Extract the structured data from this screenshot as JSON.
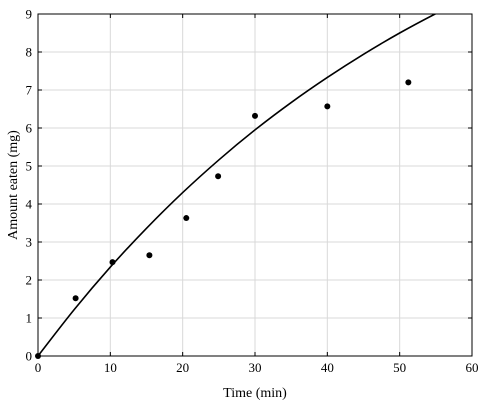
{
  "chart_data": {
    "type": "scatter",
    "xlabel": "Time (min)",
    "ylabel": "Amount eaten (mg)",
    "xlim": [
      0,
      60
    ],
    "ylim": [
      0,
      9
    ],
    "xticks": [
      0,
      10,
      20,
      30,
      40,
      50,
      60
    ],
    "yticks": [
      0,
      1,
      2,
      3,
      4,
      5,
      6,
      7,
      8,
      9
    ],
    "grid": true,
    "legend": "none",
    "marker_color": "#000000",
    "points": [
      {
        "x": 0,
        "y": 0
      },
      {
        "x": 5.2,
        "y": 1.52
      },
      {
        "x": 10.3,
        "y": 2.47
      },
      {
        "x": 15.4,
        "y": 2.65
      },
      {
        "x": 20.5,
        "y": 3.63
      },
      {
        "x": 24.9,
        "y": 4.73
      },
      {
        "x": 30.0,
        "y": 6.32
      },
      {
        "x": 40.0,
        "y": 6.57
      },
      {
        "x": 51.2,
        "y": 7.2
      }
    ],
    "fit_curve": [
      {
        "x": 0,
        "y": 0
      },
      {
        "x": 5,
        "y": 1.22
      },
      {
        "x": 10,
        "y": 2.34
      },
      {
        "x": 15,
        "y": 3.36
      },
      {
        "x": 20,
        "y": 4.3
      },
      {
        "x": 25,
        "y": 5.16
      },
      {
        "x": 30,
        "y": 5.95
      },
      {
        "x": 35,
        "y": 6.67
      },
      {
        "x": 40,
        "y": 7.33
      },
      {
        "x": 45,
        "y": 7.94
      },
      {
        "x": 50,
        "y": 8.5
      },
      {
        "x": 55,
        "y": 9.01
      },
      {
        "x": 60,
        "y": 9.48
      }
    ]
  }
}
